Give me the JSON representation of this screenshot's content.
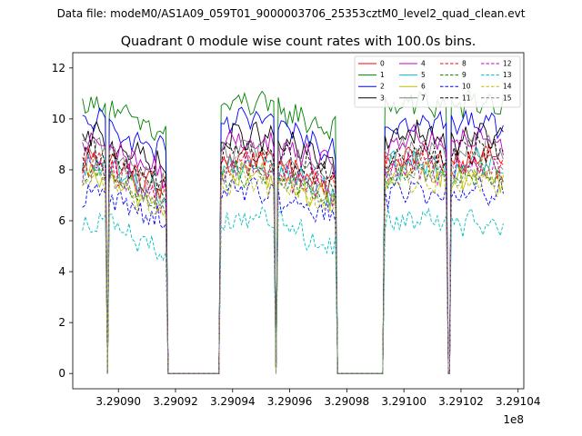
{
  "header": {
    "data_file": "Data file: modeM0/AS1A09_059T01_9000003706_25353cztM0_level2_quad_clean.evt"
  },
  "chart_data": {
    "type": "line",
    "title": "Quadrant 0 module wise count rates with 100.0s bins.",
    "xlabel": "",
    "ylabel": "",
    "x_offset_label": "1e8",
    "xlim": [
      3.290884,
      3.291042
    ],
    "ylim": [
      -0.6,
      12.6
    ],
    "x_ticks": [
      3.2909,
      3.29092,
      3.29094,
      3.29096,
      3.29098,
      3.291,
      3.29102,
      3.29104
    ],
    "x_tick_labels": [
      "3.29090",
      "3.29092",
      "3.29094",
      "3.29096",
      "3.29098",
      "3.29100",
      "3.29102",
      "3.29104"
    ],
    "y_ticks": [
      0,
      2,
      4,
      6,
      8,
      10,
      12
    ],
    "y_tick_labels": [
      "0",
      "2",
      "4",
      "6",
      "8",
      "10",
      "12"
    ],
    "x_unit_scale": 100000000.0,
    "bin_seconds": 100,
    "segments": [
      {
        "x_start": 3.2908874,
        "x_end": 3.2908954,
        "zero_end": 3.290897
      },
      {
        "x_start": 3.2908968,
        "x_end": 3.2909166,
        "zero_end": 3.290936
      },
      {
        "x_start": 3.290936,
        "x_end": 3.2909544,
        "zero_end": 3.290956
      },
      {
        "x_start": 3.290956,
        "x_end": 3.290976,
        "zero_end": 3.2909934
      },
      {
        "x_start": 3.2909934,
        "x_end": 3.2910148,
        "zero_end": 3.2910168
      },
      {
        "x_start": 3.2910166,
        "x_end": 3.2910348,
        "zero_end": 3.2910348
      }
    ],
    "legend": {
      "location": "upper right",
      "columns": 4
    },
    "series": [
      {
        "name": "0",
        "color": "#ff0000",
        "dash": "solid",
        "level": 8.3
      },
      {
        "name": "1",
        "color": "#008000",
        "dash": "solid",
        "level": 10.4
      },
      {
        "name": "2",
        "color": "#0000ff",
        "dash": "solid",
        "level": 9.7
      },
      {
        "name": "3",
        "color": "#000000",
        "dash": "solid",
        "level": 9.1
      },
      {
        "name": "4",
        "color": "#c000c0",
        "dash": "solid",
        "level": 8.9
      },
      {
        "name": "5",
        "color": "#00bfbf",
        "dash": "solid",
        "level": 8.0
      },
      {
        "name": "6",
        "color": "#bfbf00",
        "dash": "solid",
        "level": 7.6
      },
      {
        "name": "7",
        "color": "#808080",
        "dash": "solid",
        "level": 8.6
      },
      {
        "name": "8",
        "color": "#ff0000",
        "dash": "dashed",
        "level": 8.1
      },
      {
        "name": "9",
        "color": "#008000",
        "dash": "dashed",
        "level": 7.7
      },
      {
        "name": "10",
        "color": "#0000ff",
        "dash": "dashed",
        "level": 7.0
      },
      {
        "name": "11",
        "color": "#000000",
        "dash": "dashed",
        "level": 8.5
      },
      {
        "name": "12",
        "color": "#c000c0",
        "dash": "dashed",
        "level": 7.9
      },
      {
        "name": "13",
        "color": "#00bfbf",
        "dash": "dashed",
        "level": 5.8
      },
      {
        "name": "14",
        "color": "#bfbf00",
        "dash": "dashed",
        "level": 7.4
      },
      {
        "name": "15",
        "color": "#808080",
        "dash": "dashed",
        "level": 7.8
      }
    ]
  }
}
